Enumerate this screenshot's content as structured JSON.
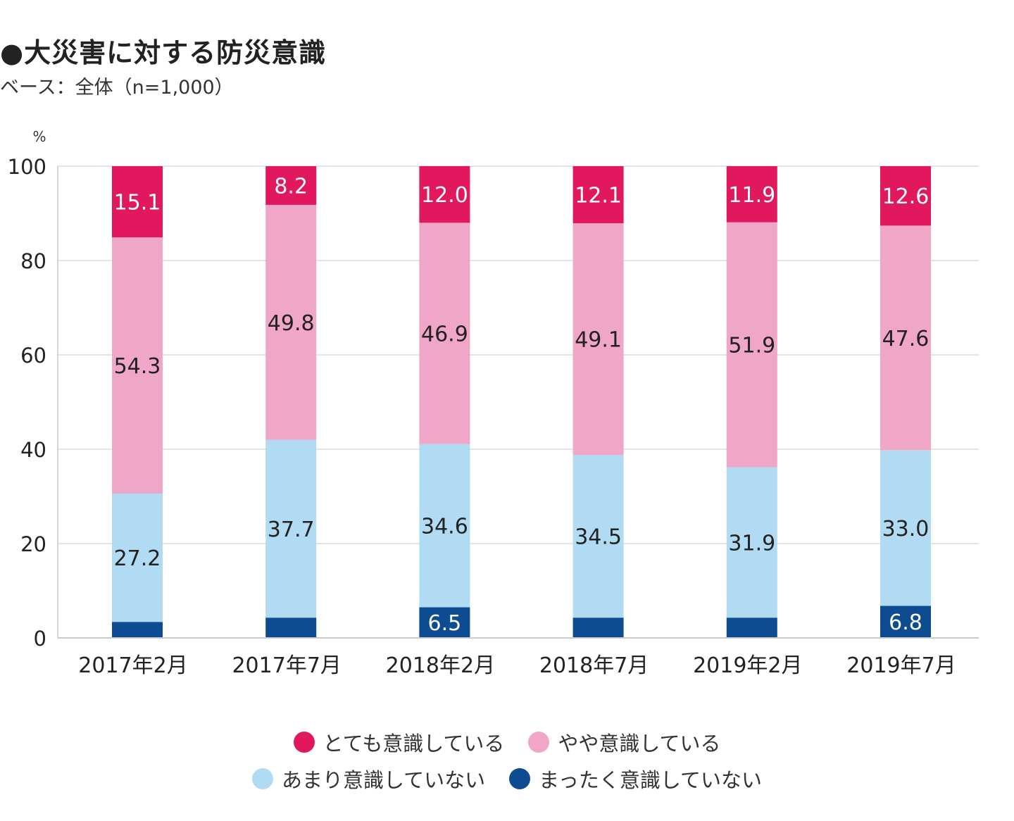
{
  "chart_data": {
    "type": "bar",
    "stacked": true,
    "title": "●大災害に対する防災意識",
    "subtitle": "ベース：全体（n=1,000）",
    "ylabel": "%",
    "ylim": [
      0,
      100
    ],
    "yticks": [
      0,
      20,
      40,
      60,
      80,
      100
    ],
    "grid": true,
    "legend_position": "bottom",
    "categories": [
      "2017年2月",
      "2017年7月",
      "2018年2月",
      "2018年7月",
      "2019年2月",
      "2019年7月"
    ],
    "series": [
      {
        "name": "まったく意識していない",
        "color": "#0e4c92",
        "label_color": "#ffffff",
        "values": [
          3.4,
          4.3,
          6.5,
          4.3,
          4.3,
          6.8
        ],
        "labels": [
          "",
          "",
          "6.5",
          "",
          "",
          "6.8"
        ]
      },
      {
        "name": "あまり意識していない",
        "color": "#b0dbf2",
        "label_color": "#222222",
        "values": [
          27.2,
          37.7,
          34.6,
          34.5,
          31.9,
          33.0
        ],
        "labels": [
          "27.2",
          "37.7",
          "34.6",
          "34.5",
          "31.9",
          "33.0"
        ]
      },
      {
        "name": "やや意識している",
        "color": "#f0a6c6",
        "label_color": "#222222",
        "values": [
          54.3,
          49.8,
          46.9,
          49.1,
          51.9,
          47.6
        ],
        "labels": [
          "54.3",
          "49.8",
          "46.9",
          "49.1",
          "51.9",
          "47.6"
        ]
      },
      {
        "name": "とても意識している",
        "color": "#e2185f",
        "label_color": "#ffffff",
        "values": [
          15.1,
          8.2,
          12.0,
          12.1,
          11.9,
          12.6
        ],
        "labels": [
          "15.1",
          "8.2",
          "12.0",
          "12.1",
          "11.9",
          "12.6"
        ]
      }
    ],
    "legend_order": [
      [
        "とても意識している",
        "やや意識している"
      ],
      [
        "あまり意識していない",
        "まったく意識していない"
      ]
    ]
  }
}
